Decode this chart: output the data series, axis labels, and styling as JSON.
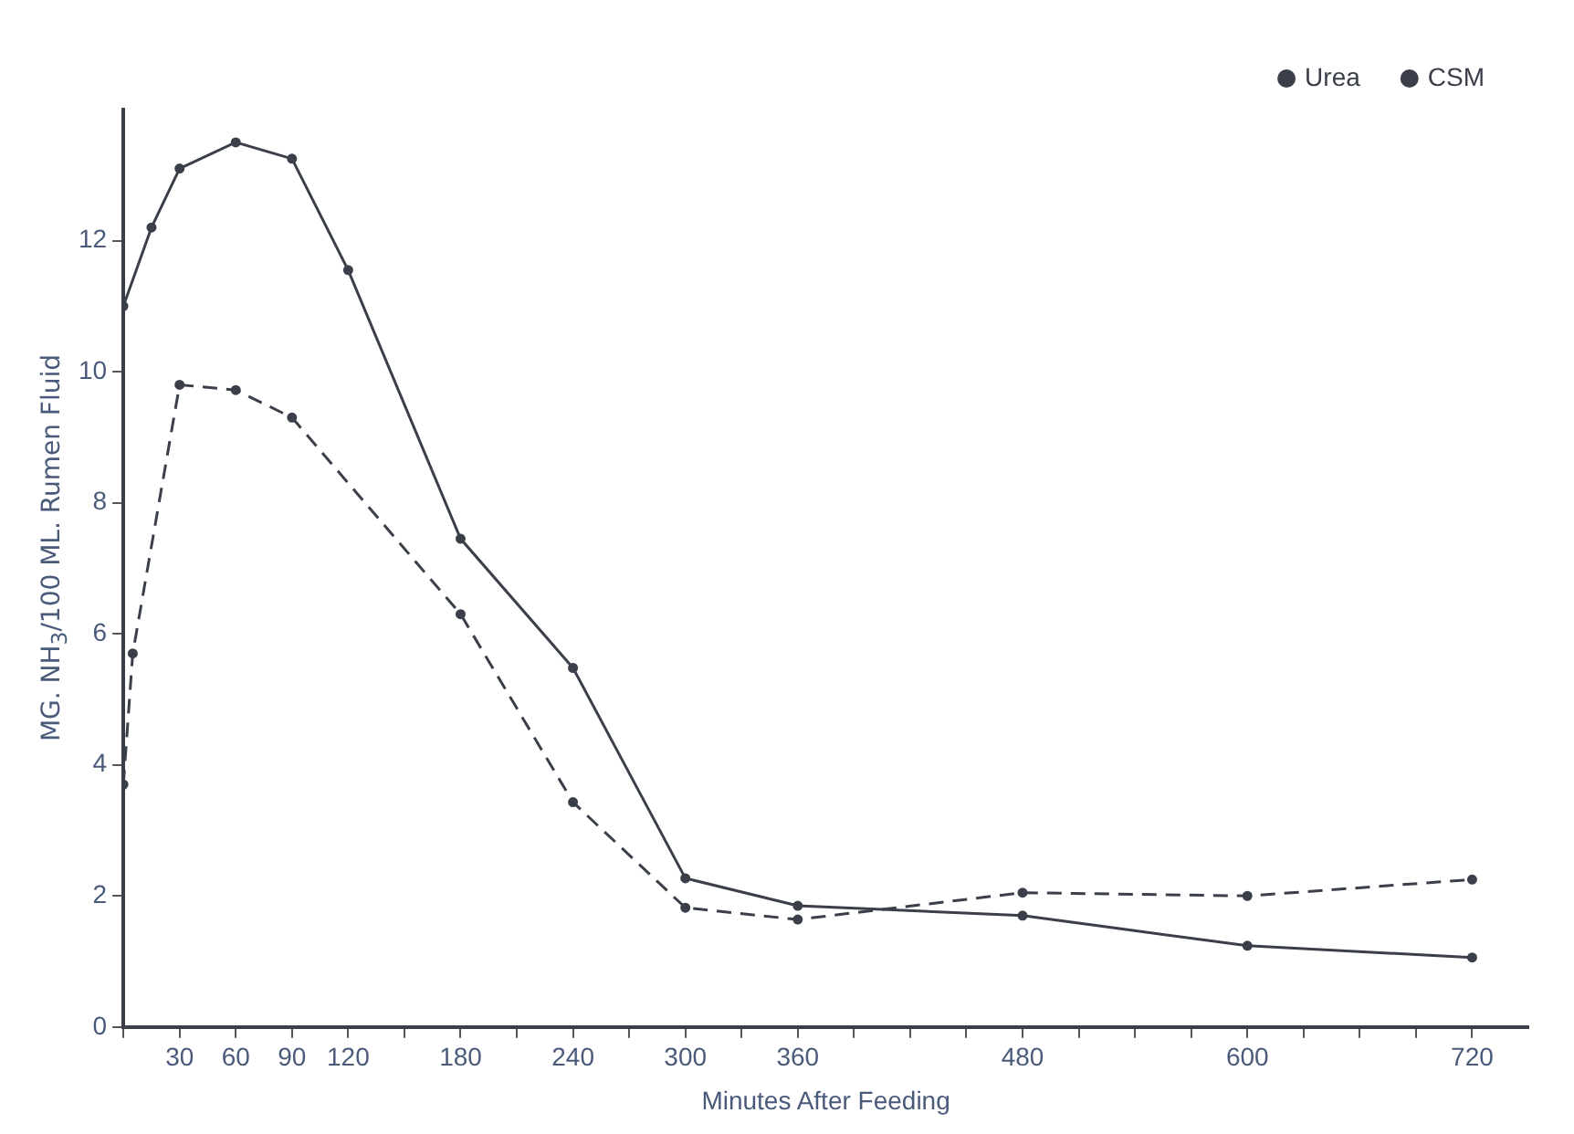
{
  "chart_data": {
    "type": "line",
    "xlabel": "Minutes After Feeding",
    "ylabel": "MG. NH$_{3}$/100 ML. Rumen Fluid",
    "xlim": [
      0,
      750
    ],
    "ylim": [
      0,
      14
    ],
    "xticks": [
      {
        "value": 0,
        "label": null
      },
      30,
      60,
      90,
      120,
      {
        "value": 150,
        "label": null
      },
      180,
      {
        "value": 210,
        "label": null
      },
      240,
      {
        "value": 270,
        "label": null
      },
      300,
      {
        "value": 330,
        "label": null
      },
      360,
      {
        "value": 390,
        "label": null
      },
      {
        "value": 420,
        "label": null
      },
      {
        "value": 450,
        "label": null
      },
      480,
      {
        "value": 510,
        "label": null
      },
      {
        "value": 540,
        "label": null
      },
      {
        "value": 570,
        "label": null
      },
      600,
      {
        "value": 630,
        "label": null
      },
      {
        "value": 660,
        "label": null
      },
      {
        "value": 690,
        "label": null
      },
      720
    ],
    "yticks": [
      0,
      2,
      4,
      6,
      8,
      10,
      12
    ],
    "grid": false,
    "legend": "top right",
    "marker": "circle",
    "series": [
      {
        "name": "Urea",
        "color": "#3a3f4a",
        "line_style": "solid",
        "x": [
          0,
          15,
          30,
          60,
          90,
          120,
          180,
          240,
          300,
          360,
          480,
          600,
          720
        ],
        "values": [
          11.0,
          12.2,
          13.1,
          13.5,
          13.25,
          11.55,
          7.45,
          5.48,
          2.27,
          1.85,
          1.7,
          1.24,
          1.06
        ]
      },
      {
        "name": "CSM",
        "color": "#3a3f4a",
        "line_style": "dashed",
        "x": [
          0,
          5,
          30,
          60,
          90,
          180,
          240,
          300,
          360,
          480,
          600,
          720
        ],
        "values": [
          3.7,
          5.7,
          9.8,
          9.72,
          9.3,
          6.3,
          3.43,
          1.82,
          1.64,
          2.05,
          2.0,
          2.25
        ]
      }
    ]
  }
}
